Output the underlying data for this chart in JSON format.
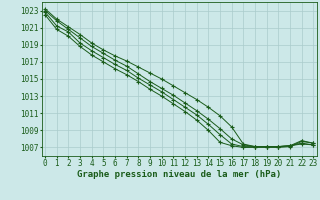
{
  "background_color": "#cce8e8",
  "grid_color": "#aacccc",
  "line_color": "#1a5c1a",
  "marker_color": "#1a5c1a",
  "xlabel": "Graphe pression niveau de la mer (hPa)",
  "xlabel_fontsize": 6.5,
  "tick_fontsize": 5.5,
  "ylim": [
    1006,
    1024
  ],
  "xlim": [
    -0.3,
    23.3
  ],
  "yticks": [
    1007,
    1009,
    1011,
    1013,
    1015,
    1017,
    1019,
    1021,
    1023
  ],
  "xticks": [
    0,
    1,
    2,
    3,
    4,
    5,
    6,
    7,
    8,
    9,
    10,
    11,
    12,
    13,
    14,
    15,
    16,
    17,
    18,
    19,
    20,
    21,
    22,
    23
  ],
  "series": [
    [
      1023.2,
      1022.0,
      1021.1,
      1020.2,
      1019.2,
      1018.4,
      1017.7,
      1017.1,
      1016.4,
      1015.7,
      1015.0,
      1014.2,
      1013.4,
      1012.6,
      1011.7,
      1010.7,
      1009.4,
      1007.4,
      1007.1,
      1007.1,
      1007.1,
      1007.2,
      1007.8,
      1007.5
    ],
    [
      1023.0,
      1021.8,
      1020.8,
      1019.8,
      1018.8,
      1018.0,
      1017.2,
      1016.5,
      1015.6,
      1014.7,
      1013.9,
      1013.1,
      1012.2,
      1011.3,
      1010.3,
      1009.2,
      1008.0,
      1007.3,
      1007.1,
      1007.1,
      1007.1,
      1007.2,
      1007.4,
      1007.3
    ],
    [
      1022.8,
      1021.2,
      1020.5,
      1019.2,
      1018.3,
      1017.5,
      1016.7,
      1016.0,
      1015.1,
      1014.3,
      1013.5,
      1012.6,
      1011.7,
      1010.8,
      1009.7,
      1008.5,
      1007.4,
      1007.1,
      1007.1,
      1007.1,
      1007.1,
      1007.2,
      1007.5,
      1007.3
    ],
    [
      1022.5,
      1020.8,
      1020.0,
      1018.8,
      1017.8,
      1017.0,
      1016.2,
      1015.5,
      1014.7,
      1013.8,
      1013.0,
      1012.1,
      1011.2,
      1010.2,
      1009.0,
      1007.6,
      1007.2,
      1007.0,
      1007.0,
      1007.0,
      1007.0,
      1007.1,
      1007.7,
      1007.5
    ]
  ]
}
